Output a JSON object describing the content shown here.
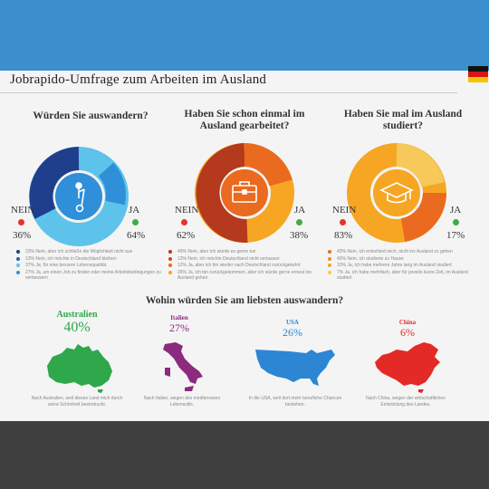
{
  "title": "Jobrapido-Umfrage zum Arbeiten im Ausland",
  "colors": {
    "navy": "#1f3f8c",
    "blue": "#2f8fd8",
    "lightblue": "#5ec3ea",
    "darkred": "#b5391c",
    "orange": "#ea6a1f",
    "amber": "#f6a623",
    "yellow": "#f7c85a",
    "green": "#3ead48",
    "red": "#e8322a",
    "australia": "#2ea84a",
    "italy": "#8c2a7d",
    "usa": "#2d86d4",
    "china": "#e42a26"
  },
  "surveys": [
    {
      "question": "Würden Sie auswandern?",
      "icon": "segway-icon",
      "nein_label": "NEIN",
      "nein_pct": "36%",
      "ja_label": "JA",
      "ja_pct": "64%",
      "legend": [
        "23% Nein, aber ich schließe die Möglichkeit nicht aus",
        "13% Nein, ich möchte in Deutschland bleiben",
        "37% Ja, für eine bessere Lebensqualität",
        "27% Ja, um einen Job zu finden oder meine Arbeitsbedingungen zu verbessern"
      ]
    },
    {
      "question": "Haben Sie schon einmal im Ausland gearbeitet?",
      "icon": "briefcase-icon",
      "nein_label": "NEIN",
      "nein_pct": "62%",
      "ja_label": "JA",
      "ja_pct": "38%",
      "legend": [
        "49% Nein, aber ich würde es gerne tun",
        "13% Nein, ich möchte Deutschland nicht verlassen",
        "12% Ja, aber ich bin wieder nach Deutschland zurückgekehrt",
        "26% Ja, ich bin zurückgekommen, aber ich würde gerne erneut ins Ausland gehen"
      ]
    },
    {
      "question": "Haben Sie mal im Ausland studiert?",
      "icon": "graduation-cap-icon",
      "nein_label": "NEIN",
      "nein_pct": "83%",
      "ja_label": "JA",
      "ja_pct": "17%",
      "legend": [
        "43% Nein, ich entschied mich, nicht ins Ausland zu gehen",
        "40% Nein, ich studierte zu Hause",
        "10% Ja, ich habe mehrere Jahre lang im Ausland studiert",
        "7% Ja, ich habe mehrfach, aber für jeweils kurze Zeit, im Ausland studiert"
      ]
    }
  ],
  "destinations_question": "Wohin würden Sie am liebsten auswandern?",
  "destinations": [
    {
      "name": "Australien",
      "pct": "40%",
      "reason": "Nach Australien, weil dieses Land mich durch seine Schönheit beeindruckt."
    },
    {
      "name": "Italien",
      "pct": "27%",
      "reason": "Nach Italien, wegen des mediterranen Lebensstils."
    },
    {
      "name": "USA",
      "pct": "26%",
      "reason": "In die USA, weil dort mehr berufliche Chancen bestehen."
    },
    {
      "name": "China",
      "pct": "6%",
      "reason": "Nach China, wegen der wirtschaftlichen Entwicklung des Landes."
    }
  ]
}
